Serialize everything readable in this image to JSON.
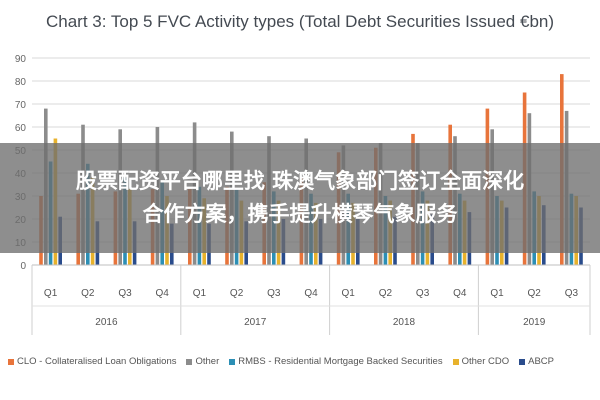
{
  "overlay": {
    "line1": "股票配资平台哪里找 珠澳气象部门签订全面深化",
    "line2": "合作方案，携手提升横琴气象服务"
  },
  "chart_data": {
    "type": "bar",
    "title": "Chart 3: Top 5 FVC Activity types (Total Debt Securities Issued €bn)",
    "xlabel": "",
    "ylabel": "",
    "ylim": [
      0,
      90
    ],
    "yticks": [
      0,
      10,
      20,
      30,
      40,
      50,
      60,
      70,
      80,
      90
    ],
    "grid": true,
    "legend_position": "bottom",
    "categories": [
      "Q1",
      "Q2",
      "Q3",
      "Q4",
      "Q1",
      "Q2",
      "Q3",
      "Q4",
      "Q1",
      "Q2",
      "Q3",
      "Q4",
      "Q1",
      "Q2",
      "Q3"
    ],
    "year_groups": [
      {
        "label": "2016",
        "count": 4
      },
      {
        "label": "2017",
        "count": 4
      },
      {
        "label": "2018",
        "count": 4
      },
      {
        "label": "2019",
        "count": 3
      }
    ],
    "series": [
      {
        "name": "CLO - Collateralised Loan Obligations",
        "color": "#e8743b",
        "values": [
          30,
          31,
          32,
          33,
          33,
          34,
          36,
          38,
          49,
          51,
          57,
          61,
          68,
          75,
          83
        ]
      },
      {
        "name": "Other",
        "color": "#8c8c8c",
        "values": [
          68,
          61,
          59,
          60,
          62,
          58,
          56,
          55,
          52,
          53,
          53,
          56,
          59,
          66,
          67
        ]
      },
      {
        "name": "RMBS - Residential Mortgage Backed Securities",
        "color": "#2c8fb5",
        "values": [
          45,
          44,
          38,
          36,
          34,
          33,
          32,
          31,
          31,
          30,
          32,
          31,
          30,
          32,
          31
        ]
      },
      {
        "name": "Other CDO",
        "color": "#e8b22c",
        "values": [
          55,
          38,
          33,
          30,
          29,
          28,
          28,
          27,
          27,
          28,
          28,
          28,
          28,
          30,
          30
        ]
      },
      {
        "name": "ABCP",
        "color": "#2a4c8c",
        "values": [
          21,
          19,
          19,
          18,
          18,
          19,
          20,
          20,
          20,
          21,
          22,
          23,
          25,
          26,
          25
        ]
      }
    ]
  }
}
